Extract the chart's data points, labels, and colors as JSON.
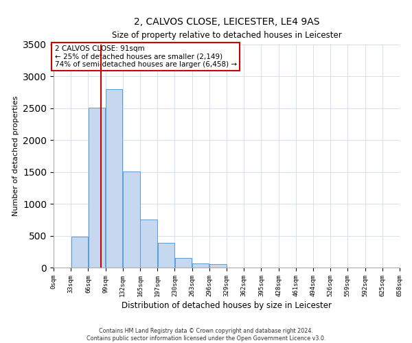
{
  "title": "2, CALVOS CLOSE, LEICESTER, LE4 9AS",
  "subtitle": "Size of property relative to detached houses in Leicester",
  "xlabel": "Distribution of detached houses by size in Leicester",
  "ylabel": "Number of detached properties",
  "bin_labels": [
    "0sqm",
    "33sqm",
    "66sqm",
    "99sqm",
    "132sqm",
    "165sqm",
    "197sqm",
    "230sqm",
    "263sqm",
    "296sqm",
    "329sqm",
    "362sqm",
    "395sqm",
    "428sqm",
    "461sqm",
    "494sqm",
    "526sqm",
    "559sqm",
    "592sqm",
    "625sqm",
    "658sqm"
  ],
  "bar_values": [
    0,
    490,
    2510,
    2800,
    1510,
    750,
    390,
    150,
    70,
    50,
    0,
    0,
    0,
    0,
    0,
    0,
    0,
    0,
    0,
    0
  ],
  "bar_color": "#c5d8f0",
  "bar_edge_color": "#5b9bd5",
  "property_line_x": 91,
  "property_line_color": "#cc0000",
  "ylim": [
    0,
    3500
  ],
  "annotation_title": "2 CALVOS CLOSE: 91sqm",
  "annotation_line1": "← 25% of detached houses are smaller (2,149)",
  "annotation_line2": "74% of semi-detached houses are larger (6,458) →",
  "annotation_box_color": "#ffffff",
  "annotation_box_edge": "#cc0000",
  "footer_line1": "Contains HM Land Registry data © Crown copyright and database right 2024.",
  "footer_line2": "Contains public sector information licensed under the Open Government Licence v3.0.",
  "bin_width": 33,
  "num_bins": 20,
  "xlim_max": 660
}
